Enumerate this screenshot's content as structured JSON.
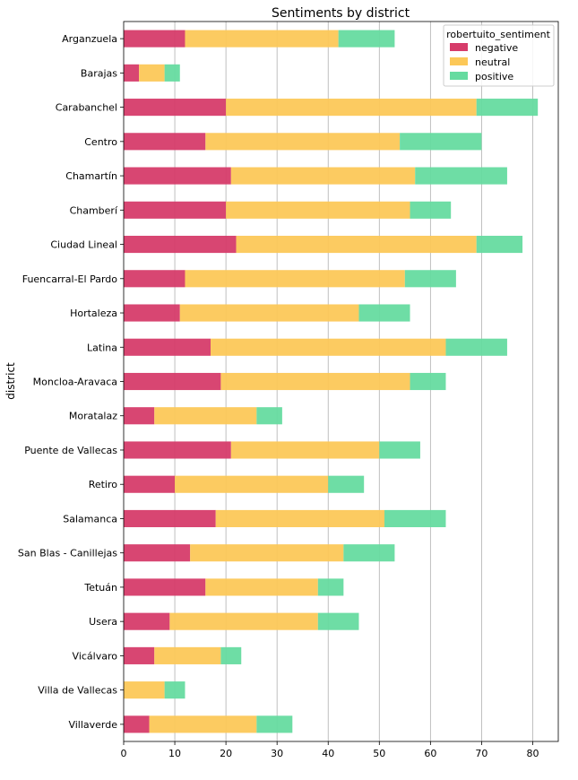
{
  "chart_data": {
    "type": "bar",
    "orientation": "horizontal",
    "stacked": true,
    "title": "Sentiments by district",
    "xlabel": "",
    "ylabel": "district",
    "xlim": [
      0,
      85
    ],
    "xticks": [
      0,
      10,
      20,
      30,
      40,
      50,
      60,
      70,
      80
    ],
    "grid": "vertical",
    "legend": {
      "title": "robertuito_sentiment",
      "placement": "top-right"
    },
    "categories": [
      "Arganzuela",
      "Barajas",
      "Carabanchel",
      "Centro",
      "Chamartín",
      "Chamberí",
      "Ciudad Lineal",
      "Fuencarral-El Pardo",
      "Hortaleza",
      "Latina",
      "Moncloa-Aravaca",
      "Moratalaz",
      "Puente de Vallecas",
      "Retiro",
      "Salamanca",
      "San Blas - Canillejas",
      "Tetuán",
      "Usera",
      "Vicálvaro",
      "Villa de Vallecas",
      "Villaverde"
    ],
    "series": [
      {
        "name": "negative",
        "color": "#d63c6a",
        "values": [
          12,
          3,
          20,
          16,
          21,
          20,
          22,
          12,
          11,
          17,
          19,
          6,
          21,
          10,
          18,
          13,
          16,
          9,
          6,
          0,
          5
        ]
      },
      {
        "name": "neutral",
        "color": "#fcc858",
        "values": [
          30,
          5,
          49,
          38,
          36,
          36,
          47,
          43,
          35,
          46,
          37,
          20,
          29,
          30,
          33,
          30,
          22,
          29,
          13,
          8,
          21
        ]
      },
      {
        "name": "positive",
        "color": "#66dba0",
        "values": [
          11,
          3,
          12,
          16,
          18,
          8,
          9,
          10,
          10,
          12,
          7,
          5,
          8,
          7,
          12,
          10,
          5,
          8,
          4,
          4,
          7
        ]
      }
    ]
  }
}
